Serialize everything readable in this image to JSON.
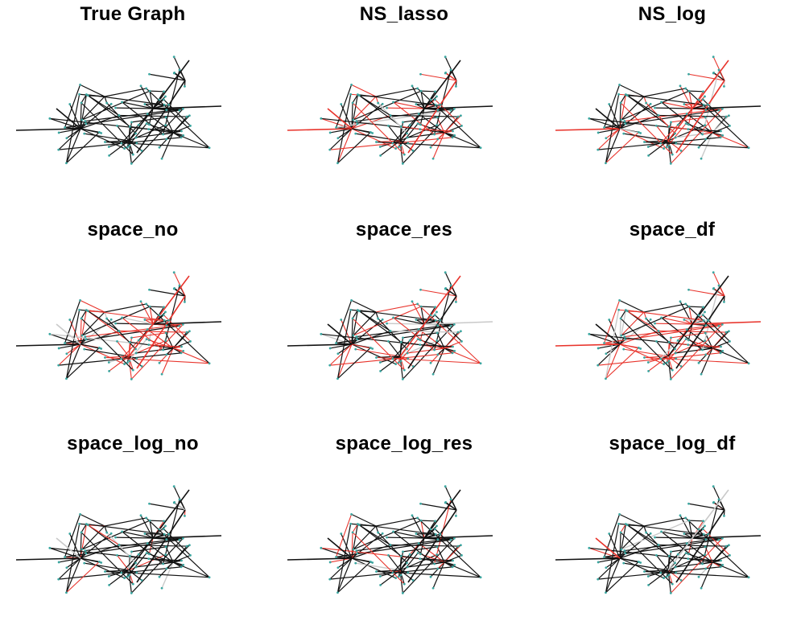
{
  "figure": {
    "panels": [
      {
        "title": "True Graph",
        "style": "true"
      },
      {
        "title": "NS_lasso",
        "style": "mixed"
      },
      {
        "title": "NS_log",
        "style": "heavy"
      },
      {
        "title": "space_no",
        "style": "heavy"
      },
      {
        "title": "space_res",
        "style": "mixed"
      },
      {
        "title": "space_df",
        "style": "heavy"
      },
      {
        "title": "space_log_no",
        "style": "light"
      },
      {
        "title": "space_log_res",
        "style": "light"
      },
      {
        "title": "space_log_df",
        "style": "light"
      }
    ],
    "colors": {
      "true_edge": "#111111",
      "false_positive_edge": "#e8332b",
      "missed_edge": "#c9c9c9",
      "node": "#3aa6a0"
    }
  }
}
